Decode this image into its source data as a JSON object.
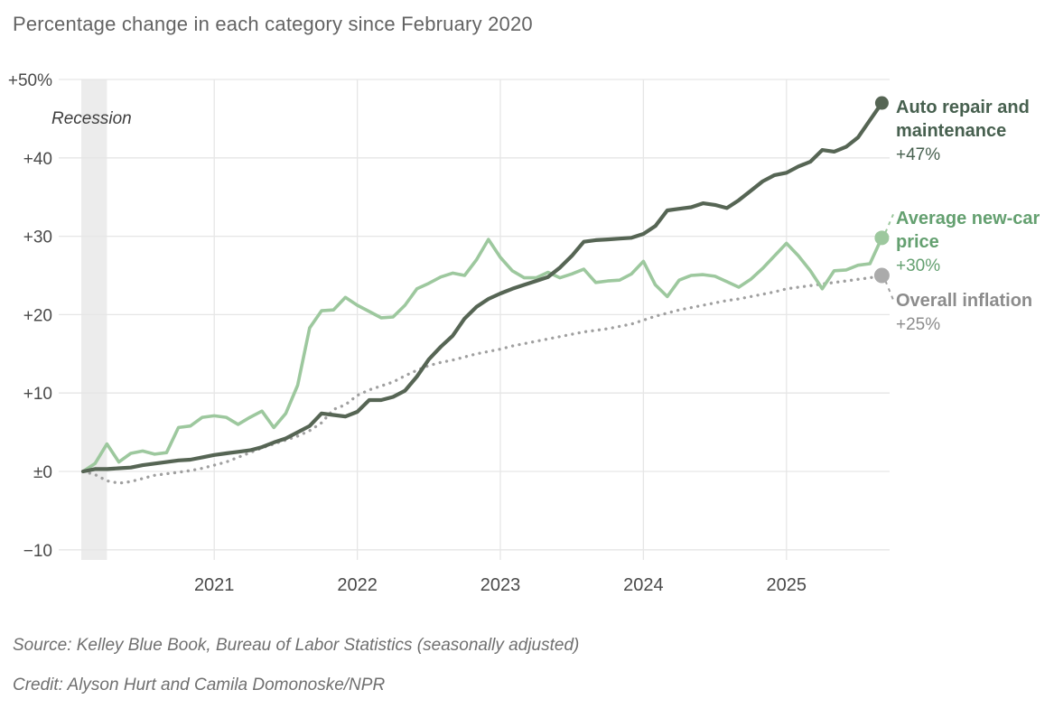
{
  "page": {
    "title": "Percentage change in each category since February 2020",
    "source": "Source: Kelley Blue Book, Bureau of Labor Statistics (seasonally adjusted)",
    "credit": "Credit: Alyson Hurt and Camila Domonoske/NPR"
  },
  "colors": {
    "auto_repair_line": "#566554",
    "auto_repair_text": "#47604f",
    "new_car_line": "#9dc89e",
    "new_car_text": "#64a070",
    "inflation_line": "#a0a0a0",
    "inflation_dot": "#ababab",
    "inflation_text": "#8c8c8c",
    "recession_band": "#ececec",
    "gridline": "#e6e6e6",
    "axis_text": "#4a4a4a",
    "title_text": "#636363"
  },
  "chart_data": {
    "type": "line",
    "title": "Percentage change in each category since February 2020",
    "x_unit": "month",
    "x_start": "2020-02",
    "x_end": "2025-09",
    "ylim": [
      -10,
      50
    ],
    "grid": true,
    "legend_position": "right",
    "yticks": [
      {
        "value": 50,
        "label": "+50%"
      },
      {
        "value": 40,
        "label": "+40"
      },
      {
        "value": 30,
        "label": "+30"
      },
      {
        "value": 20,
        "label": "+20"
      },
      {
        "value": 10,
        "label": "+10"
      },
      {
        "value": 0,
        "label": "±0"
      },
      {
        "value": -10,
        "label": "−10"
      }
    ],
    "xticks": [
      {
        "label": "2021",
        "month": 11
      },
      {
        "label": "2022",
        "month": 23
      },
      {
        "label": "2023",
        "month": 35
      },
      {
        "label": "2024",
        "month": 47
      },
      {
        "label": "2025",
        "month": 59
      }
    ],
    "annotations": {
      "recession_label": "Recession",
      "recession_span_months": [
        0,
        2
      ]
    },
    "series": [
      {
        "name": "Auto repair and maintenance",
        "end_label": "+47%",
        "style": "solid",
        "values": [
          0,
          0.3,
          0.3,
          0.4,
          0.5,
          0.8,
          1.0,
          1.2,
          1.4,
          1.5,
          1.8,
          2.1,
          2.3,
          2.5,
          2.7,
          3.1,
          3.7,
          4.2,
          5.0,
          5.8,
          7.4,
          7.2,
          7.0,
          7.6,
          9.1,
          9.1,
          9.5,
          10.3,
          12.1,
          14.3,
          15.9,
          17.3,
          19.5,
          21.0,
          22.0,
          22.7,
          23.3,
          23.8,
          24.3,
          24.8,
          26.0,
          27.5,
          29.3,
          29.5,
          29.6,
          29.7,
          29.8,
          30.3,
          31.3,
          33.3,
          33.5,
          33.7,
          34.2,
          34.0,
          33.6,
          34.6,
          35.8,
          37.0,
          37.8,
          38.1,
          38.9,
          39.5,
          41.0,
          40.8,
          41.4,
          42.6,
          44.8,
          47.0
        ]
      },
      {
        "name": "Average new-car price",
        "end_label": "+30%",
        "style": "solid",
        "values": [
          0,
          1.0,
          3.5,
          1.2,
          2.3,
          2.6,
          2.2,
          2.4,
          5.6,
          5.8,
          6.9,
          7.1,
          6.9,
          6.0,
          6.9,
          7.7,
          5.6,
          7.4,
          11.0,
          18.3,
          20.5,
          20.6,
          22.2,
          21.2,
          20.4,
          19.6,
          19.7,
          21.2,
          23.3,
          24.0,
          24.8,
          25.3,
          25.0,
          27.0,
          29.6,
          27.3,
          25.6,
          24.7,
          24.7,
          25.4,
          24.7,
          25.2,
          25.8,
          24.1,
          24.3,
          24.4,
          25.2,
          26.8,
          23.8,
          22.3,
          24.4,
          25.0,
          25.1,
          24.9,
          24.2,
          23.5,
          24.5,
          25.9,
          27.5,
          29.1,
          27.5,
          25.6,
          23.3,
          25.6,
          25.7,
          26.3,
          26.5,
          29.8
        ]
      },
      {
        "name": "Overall inflation",
        "end_label": "+25%",
        "style": "dotted",
        "values": [
          0,
          -0.4,
          -1.2,
          -1.5,
          -1.3,
          -0.9,
          -0.5,
          -0.3,
          -0.1,
          0.1,
          0.4,
          0.8,
          1.2,
          1.8,
          2.4,
          3.0,
          3.5,
          4.0,
          4.5,
          5.2,
          6.2,
          7.9,
          8.5,
          9.7,
          10.4,
          10.9,
          11.4,
          12.2,
          12.9,
          13.5,
          13.9,
          14.2,
          14.6,
          15.0,
          15.3,
          15.6,
          16.0,
          16.3,
          16.6,
          16.9,
          17.2,
          17.5,
          17.8,
          18.0,
          18.2,
          18.5,
          18.8,
          19.3,
          19.8,
          20.2,
          20.6,
          20.9,
          21.2,
          21.5,
          21.8,
          22.0,
          22.3,
          22.6,
          22.9,
          23.3,
          23.5,
          23.7,
          23.9,
          24.1,
          24.3,
          24.5,
          24.7,
          25.0
        ]
      }
    ]
  }
}
